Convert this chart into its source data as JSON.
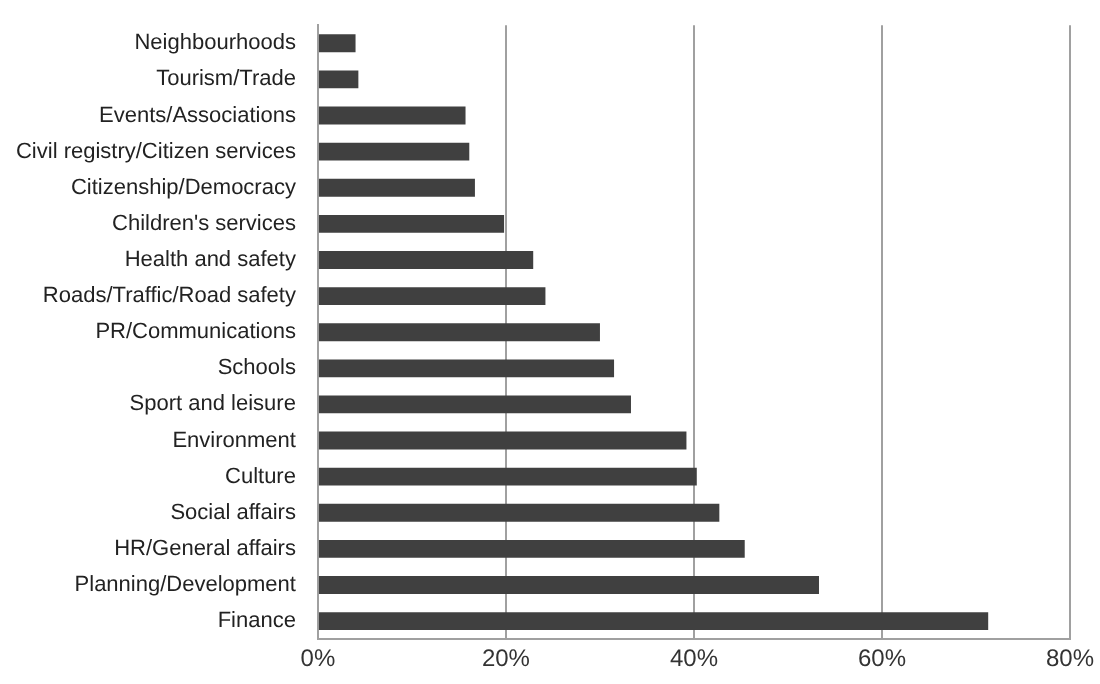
{
  "chart_data": {
    "type": "bar",
    "orientation": "horizontal",
    "categories": [
      "Neighbourhoods",
      "Tourism/Trade",
      "Events/Associations",
      "Civil registry/Citizen services",
      "Citizenship/Democracy",
      "Children's services",
      "Health and safety",
      "Roads/Traffic/Road safety",
      "PR/Communications",
      "Schools",
      "Sport and leisure",
      "Environment",
      "Culture",
      "Social affairs",
      "HR/General affairs",
      "Planning/Development",
      "Finance"
    ],
    "values": [
      4.0,
      4.3,
      15.7,
      16.1,
      16.7,
      19.8,
      22.9,
      24.2,
      30.0,
      31.5,
      33.3,
      39.2,
      40.3,
      42.7,
      45.4,
      53.3,
      71.3
    ],
    "color": "#404040",
    "xlim": [
      0,
      80
    ],
    "xticks": [
      {
        "value": 0,
        "label": "0%"
      },
      {
        "value": 20,
        "label": "20%"
      },
      {
        "value": 40,
        "label": "40%"
      },
      {
        "value": 60,
        "label": "60%"
      },
      {
        "value": 80,
        "label": "80%"
      }
    ],
    "grid": "x",
    "legend": false
  }
}
